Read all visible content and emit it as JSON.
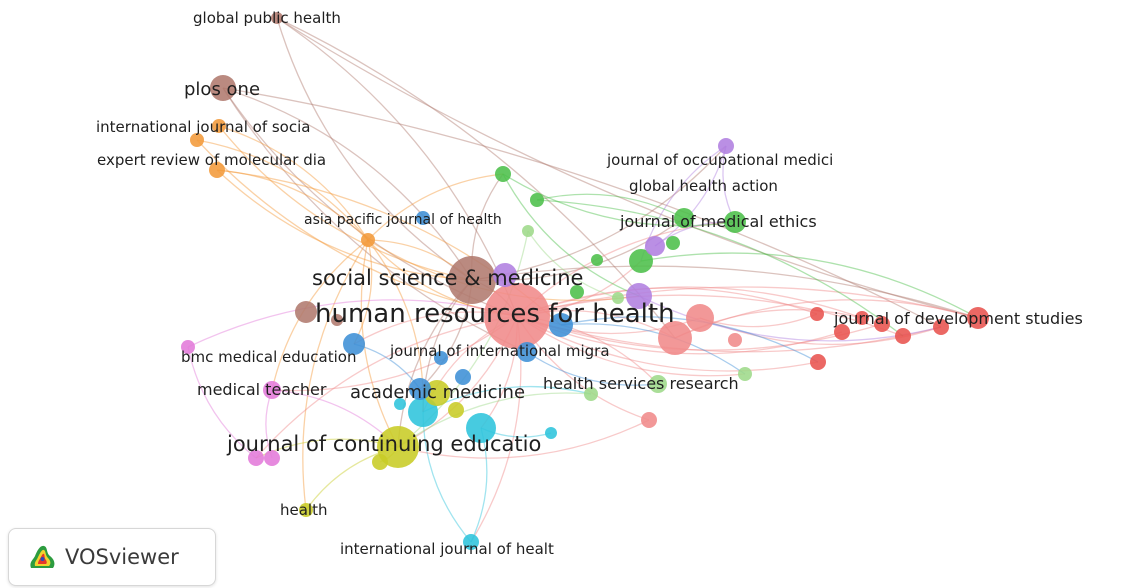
{
  "app": {
    "name": "VOSviewer",
    "logo_icon": "vosviewer-heatmap-logo-icon"
  },
  "clusters": {
    "red": "#e8534f",
    "pink": "#f08a8a",
    "brown": "#b07a6e",
    "orange": "#f39a3a",
    "green": "#4cbf4a",
    "lightgreen": "#9ed98a",
    "purple": "#b080e0",
    "blue": "#3d8fd6",
    "cyan": "#2ec4dc",
    "yellow": "#c8cc26",
    "magenta": "#e27ad9"
  },
  "labels": [
    {
      "id": "global_public_health",
      "text": "global public health"
    },
    {
      "id": "plos_one",
      "text": "plos one"
    },
    {
      "id": "intl_journal_socia",
      "text": "international journal of socia"
    },
    {
      "id": "expert_review",
      "text": "expert review of molecular dia"
    },
    {
      "id": "asia_pacific",
      "text": "asia pacific journal of health"
    },
    {
      "id": "occupational",
      "text": "journal of occupational medici"
    },
    {
      "id": "global_health_action",
      "text": "global health action"
    },
    {
      "id": "medical_ethics",
      "text": "journal of medical ethics"
    },
    {
      "id": "social_science",
      "text": "social science & medicine"
    },
    {
      "id": "hrh",
      "text": "human resources for health"
    },
    {
      "id": "development_studies",
      "text": "journal of development studies"
    },
    {
      "id": "bmc_med_ed",
      "text": "bmc medical education"
    },
    {
      "id": "intl_migra",
      "text": "journal of international migra"
    },
    {
      "id": "medical_teacher",
      "text": "medical teacher"
    },
    {
      "id": "academic_medicine",
      "text": "academic medicine"
    },
    {
      "id": "hsr",
      "text": "health services research"
    },
    {
      "id": "continuing_ed",
      "text": "journal of continuing educatio"
    },
    {
      "id": "health",
      "text": "health"
    },
    {
      "id": "intl_journal_healt",
      "text": "international journal of healt"
    }
  ]
}
